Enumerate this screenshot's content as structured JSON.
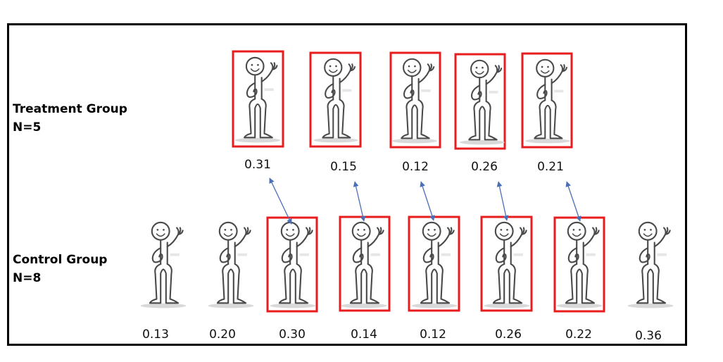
{
  "treatment_group": {
    "label": "Treatment Group",
    "n_label": "N=5",
    "values": [
      "0.31",
      "0.15",
      "0.12",
      "0.26",
      "0.21"
    ]
  },
  "control_group": {
    "label": "Control Group",
    "n_label": "N=8",
    "values": [
      "0.13",
      "0.20",
      "0.30",
      "0.14",
      "0.12",
      "0.26",
      "0.22",
      "0.36"
    ],
    "matched": [
      false,
      false,
      true,
      true,
      true,
      true,
      true,
      false
    ]
  },
  "matches": [
    [
      0,
      2
    ],
    [
      1,
      3
    ],
    [
      2,
      4
    ],
    [
      3,
      5
    ],
    [
      4,
      6
    ]
  ],
  "colors": {
    "highlight_box": "#e81c1c",
    "match_arrow": "#4a6fb5",
    "figure_stroke": "#4a4a4a",
    "frame": "#000000"
  },
  "icons": {
    "person": "stick-figure-waving-icon"
  }
}
